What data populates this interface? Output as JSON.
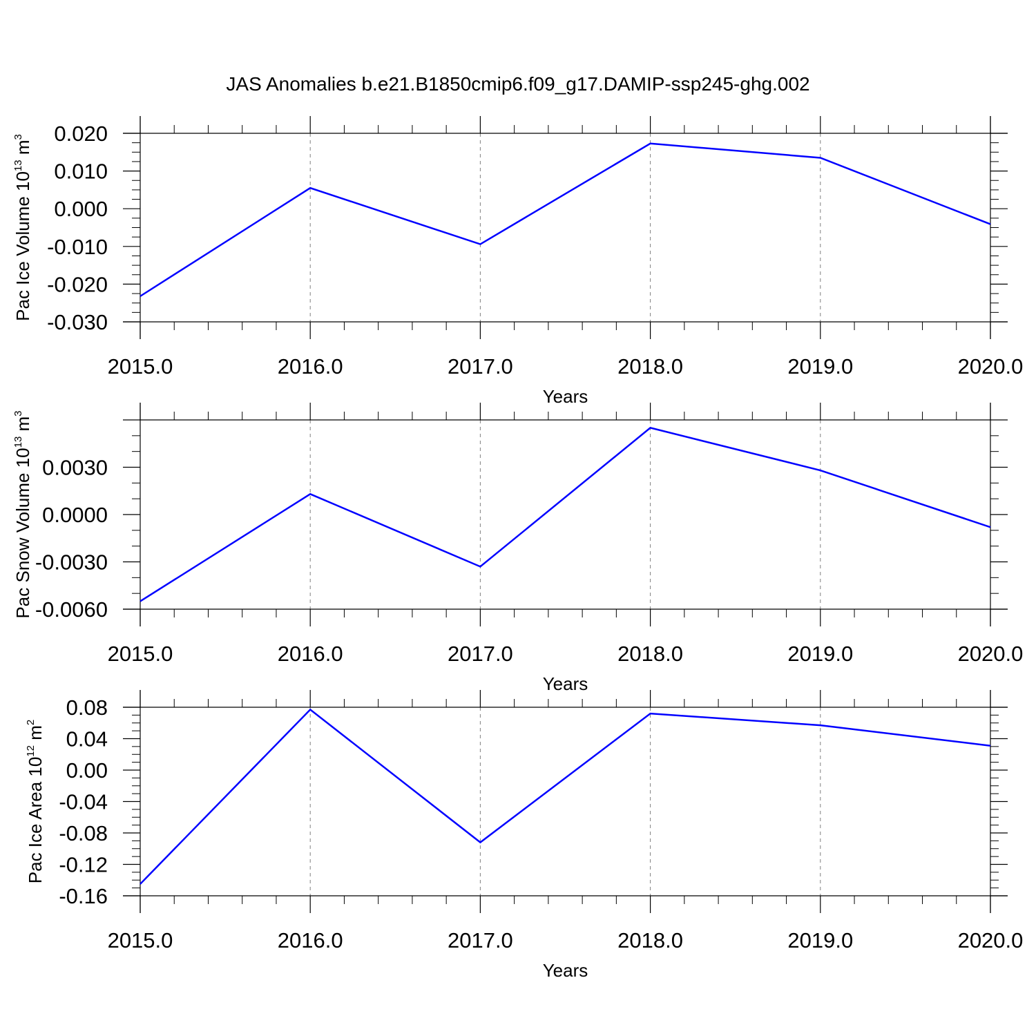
{
  "title": "JAS Anomalies b.e21.B1850cmip6.f09_g17.DAMIP-ssp245-ghg.002",
  "colors": {
    "line": "#0000ff",
    "axis": "#000000",
    "grid": "#7f7f7f"
  },
  "chart_data": [
    {
      "type": "line",
      "xlabel": "Years",
      "ylabel": {
        "text": "Pac Ice Volume 10",
        "exp": "13",
        "unit": " m",
        "unit_exp": "3"
      },
      "x_ticks": [
        "2015.0",
        "2016.0",
        "2017.0",
        "2018.0",
        "2019.0",
        "2020.0"
      ],
      "y_ticks": [
        {
          "value": 0.02,
          "label": "0.020"
        },
        {
          "value": 0.01,
          "label": "0.010"
        },
        {
          "value": 0.0,
          "label": "0.000"
        },
        {
          "value": -0.01,
          "label": "-0.010"
        },
        {
          "value": -0.02,
          "label": "-0.020"
        },
        {
          "value": -0.03,
          "label": "-0.030"
        }
      ],
      "xlim": [
        2015,
        2020
      ],
      "ylim": [
        -0.03,
        0.02
      ],
      "y_minor_step": 0.0025,
      "grid": "vertical dashed",
      "x": [
        2015,
        2016,
        2017,
        2018,
        2019,
        2020
      ],
      "y": [
        -0.0232,
        0.0055,
        -0.0094,
        0.0173,
        0.0135,
        -0.0041
      ]
    },
    {
      "type": "line",
      "xlabel": "Years",
      "ylabel": {
        "text": "Pac Snow Volume 10",
        "exp": "13",
        "unit": " m",
        "unit_exp": "3"
      },
      "x_ticks": [
        "2015.0",
        "2016.0",
        "2017.0",
        "2018.0",
        "2019.0",
        "2020.0"
      ],
      "y_ticks": [
        {
          "value": 0.003,
          "label": "0.0030"
        },
        {
          "value": 0.0,
          "label": "0.0000"
        },
        {
          "value": -0.003,
          "label": "-0.0030"
        },
        {
          "value": -0.006,
          "label": "-0.0060"
        }
      ],
      "xlim": [
        2015,
        2020
      ],
      "ylim": [
        -0.006,
        0.006
      ],
      "y_minor_step": 0.001,
      "grid": "vertical dashed",
      "x": [
        2015,
        2016,
        2017,
        2018,
        2019,
        2020
      ],
      "y": [
        -0.0055,
        0.0013,
        -0.0033,
        0.0055,
        0.0028,
        -0.0008
      ]
    },
    {
      "type": "line",
      "xlabel": "Years",
      "ylabel": {
        "text": "Pac Ice Area 10",
        "exp": "12",
        "unit": " m",
        "unit_exp": "2"
      },
      "x_ticks": [
        "2015.0",
        "2016.0",
        "2017.0",
        "2018.0",
        "2019.0",
        "2020.0"
      ],
      "y_ticks": [
        {
          "value": 0.08,
          "label": "0.08"
        },
        {
          "value": 0.04,
          "label": "0.04"
        },
        {
          "value": 0.0,
          "label": "0.00"
        },
        {
          "value": -0.04,
          "label": "-0.04"
        },
        {
          "value": -0.08,
          "label": "-0.08"
        },
        {
          "value": -0.12,
          "label": "-0.12"
        },
        {
          "value": -0.16,
          "label": "-0.16"
        }
      ],
      "xlim": [
        2015,
        2020
      ],
      "ylim": [
        -0.16,
        0.08
      ],
      "y_minor_step": 0.01,
      "grid": "vertical dashed",
      "x": [
        2015,
        2016,
        2017,
        2018,
        2019,
        2020
      ],
      "y": [
        -0.145,
        0.077,
        -0.092,
        0.072,
        0.057,
        0.031
      ]
    }
  ]
}
